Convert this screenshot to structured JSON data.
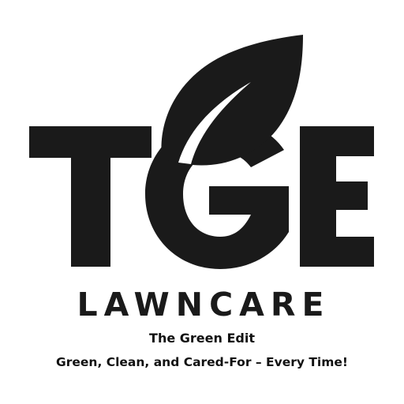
{
  "logo": {
    "monogram": "TGE",
    "wordmark": "LAWNCARE",
    "subtitle": "The Green Edit",
    "tagline": "Green, Clean, and Cared-For – Every Time!",
    "icon": "leaf-icon",
    "ink_color": "#1a1a1a",
    "background_color": "#ffffff"
  }
}
